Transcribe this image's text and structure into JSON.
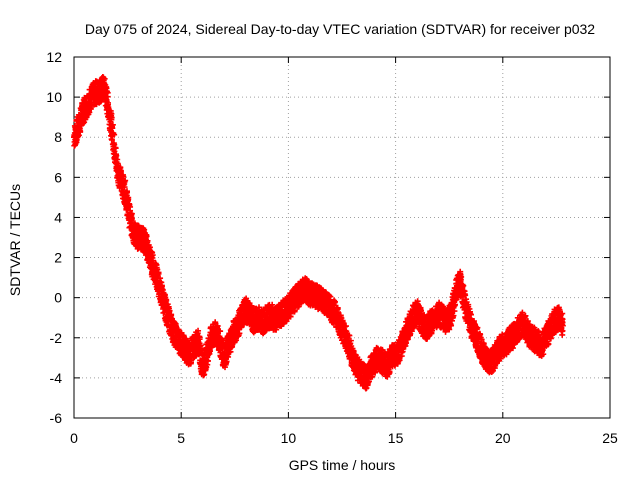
{
  "chart_data": {
    "type": "scatter",
    "title": "Day 075 of 2024, Sidereal Day-to-day VTEC variation (SDTVAR) for receiver p032",
    "xlabel": "GPS time / hours",
    "ylabel": "SDTVAR / TECUs",
    "xlim": [
      0,
      25
    ],
    "ylim": [
      -6,
      12
    ],
    "xticks": [
      0,
      5,
      10,
      15,
      20,
      25
    ],
    "yticks": [
      -6,
      -4,
      -2,
      0,
      2,
      4,
      6,
      8,
      10,
      12
    ],
    "grid": true,
    "marker": "+",
    "series": [
      {
        "name": "SDTVAR",
        "color": "#ff0000",
        "x": [
          0.0,
          0.2,
          0.4,
          0.6,
          0.8,
          1.0,
          1.2,
          1.4,
          1.6,
          1.8,
          2.0,
          2.2,
          2.4,
          2.6,
          2.8,
          3.0,
          3.2,
          3.4,
          3.6,
          3.8,
          4.0,
          4.2,
          4.4,
          4.6,
          4.8,
          5.0,
          5.2,
          5.4,
          5.6,
          5.8,
          6.0,
          6.2,
          6.4,
          6.6,
          6.8,
          7.0,
          7.2,
          7.4,
          7.6,
          7.8,
          8.0,
          8.2,
          8.4,
          8.6,
          8.8,
          9.0,
          9.2,
          9.4,
          9.6,
          9.8,
          10.0,
          10.2,
          10.4,
          10.6,
          10.8,
          11.0,
          11.2,
          11.4,
          11.6,
          11.8,
          12.0,
          12.2,
          12.4,
          12.6,
          12.8,
          13.0,
          13.2,
          13.4,
          13.6,
          13.8,
          14.0,
          14.2,
          14.4,
          14.6,
          14.8,
          15.0,
          15.2,
          15.4,
          15.6,
          15.8,
          16.0,
          16.2,
          16.4,
          16.6,
          16.8,
          17.0,
          17.2,
          17.4,
          17.6,
          17.8,
          18.0,
          18.2,
          18.4,
          18.6,
          18.8,
          19.0,
          19.2,
          19.4,
          19.6,
          19.8,
          20.0,
          20.2,
          20.4,
          20.6,
          20.8,
          21.0,
          21.2,
          21.4,
          21.6,
          21.8,
          22.0,
          22.2,
          22.4,
          22.6,
          22.8
        ],
        "y": [
          8.0,
          8.5,
          9.2,
          9.6,
          10.0,
          10.2,
          10.3,
          10.5,
          9.5,
          8.2,
          6.5,
          5.8,
          5.2,
          4.0,
          3.2,
          3.0,
          3.0,
          2.5,
          1.8,
          1.2,
          0.5,
          -0.3,
          -1.0,
          -1.6,
          -2.0,
          -2.3,
          -2.6,
          -2.8,
          -2.4,
          -2.2,
          -3.5,
          -2.8,
          -2.0,
          -1.8,
          -2.2,
          -3.0,
          -2.4,
          -1.8,
          -1.5,
          -1.0,
          -0.6,
          -0.8,
          -1.2,
          -1.0,
          -1.2,
          -1.0,
          -0.9,
          -1.1,
          -0.9,
          -0.7,
          -0.5,
          -0.2,
          0.0,
          0.3,
          0.4,
          0.2,
          0.1,
          0.0,
          -0.1,
          -0.3,
          -0.6,
          -0.8,
          -1.3,
          -1.8,
          -2.3,
          -3.0,
          -3.5,
          -3.8,
          -4.0,
          -3.6,
          -3.2,
          -3.0,
          -3.2,
          -3.4,
          -3.0,
          -2.8,
          -2.6,
          -2.0,
          -1.5,
          -1.0,
          -0.7,
          -1.2,
          -1.6,
          -1.3,
          -1.0,
          -0.8,
          -1.0,
          -1.2,
          -0.8,
          0.2,
          0.8,
          -0.2,
          -1.0,
          -1.6,
          -2.0,
          -2.6,
          -3.0,
          -3.2,
          -3.0,
          -2.6,
          -2.4,
          -2.2,
          -2.0,
          -1.8,
          -1.4,
          -1.3,
          -1.8,
          -2.0,
          -2.2,
          -2.4,
          -2.0,
          -1.6,
          -1.2,
          -1.0,
          -1.4
        ]
      }
    ]
  }
}
